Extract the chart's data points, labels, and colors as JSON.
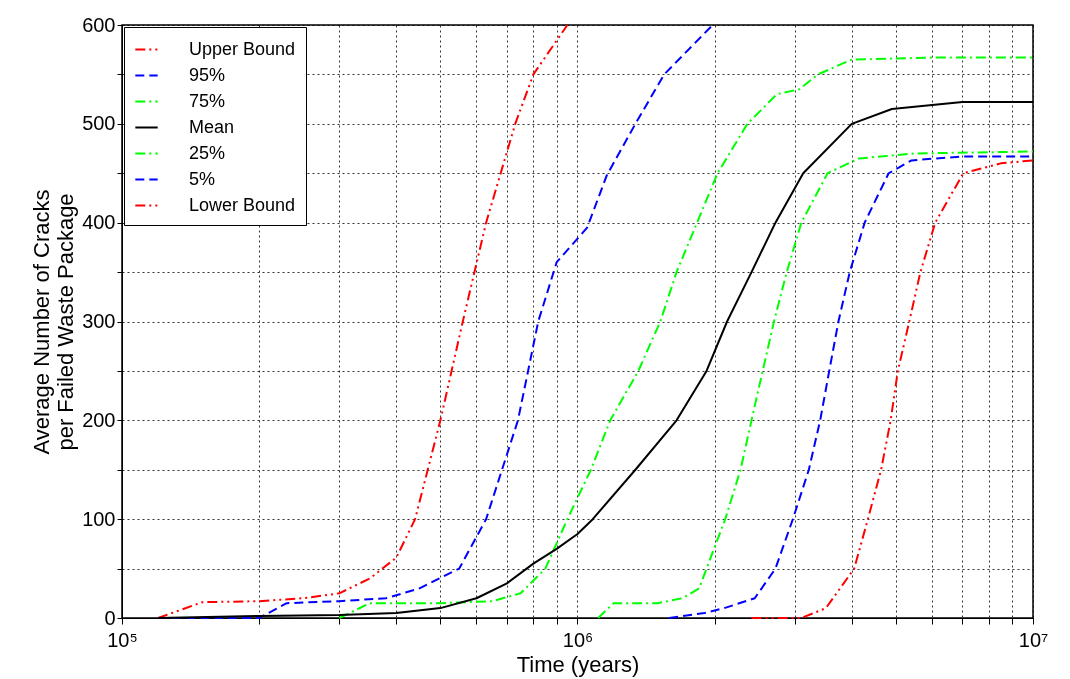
{
  "chart_data": {
    "type": "line",
    "xlabel": "Time (years)",
    "ylabel": "Average Number of Cracks\nper Failed Waste Package",
    "log": "x",
    "grid": true,
    "legend": "top left",
    "xlim": [
      100000,
      10000000
    ],
    "xticks": [
      {
        "value": 100000,
        "label": "10⁵"
      },
      {
        "value": 200000,
        "label": null
      },
      {
        "value": 300000,
        "label": null
      },
      {
        "value": 400000,
        "label": null
      },
      {
        "value": 500000,
        "label": null
      },
      {
        "value": 600000,
        "label": null
      },
      {
        "value": 700000,
        "label": null
      },
      {
        "value": 800000,
        "label": null
      },
      {
        "value": 900000,
        "label": null
      },
      {
        "value": 1000000,
        "label": "10⁶"
      },
      {
        "value": 2000000,
        "label": null
      },
      {
        "value": 3000000,
        "label": null
      },
      {
        "value": 4000000,
        "label": null
      },
      {
        "value": 5000000,
        "label": null
      },
      {
        "value": 6000000,
        "label": null
      },
      {
        "value": 7000000,
        "label": null
      },
      {
        "value": 8000000,
        "label": null
      },
      {
        "value": 9000000,
        "label": null
      },
      {
        "value": 10000000,
        "label": "10⁷"
      }
    ],
    "ylim": [
      0,
      600
    ],
    "yticks": [
      0,
      {
        "value": 50,
        "label": null
      },
      100,
      {
        "value": 150,
        "label": null
      },
      200,
      {
        "value": 250,
        "label": null
      },
      300,
      {
        "value": 350,
        "label": null
      },
      400,
      {
        "value": 450,
        "label": null
      },
      500,
      {
        "value": 550,
        "label": null
      },
      600
    ],
    "series": [
      {
        "name": "Upper Bound",
        "color": "#ff0000",
        "line_style": "dashdotdot",
        "x": [
          120000,
          150000,
          200000,
          250000,
          300000,
          350000,
          400000,
          440000,
          500000,
          560000,
          630000,
          730000,
          800000,
          950000
        ],
        "values": [
          0,
          16,
          17,
          20,
          25,
          40,
          61,
          100,
          200,
          300,
          400,
          500,
          550,
          600
        ]
      },
      {
        "name": "95%",
        "color": "#0000ff",
        "line_style": "dashed",
        "x": [
          120000,
          200000,
          230000,
          300000,
          380000,
          450000,
          550000,
          630000,
          740000,
          820000,
          900000,
          1050000,
          1160000,
          1340000,
          1550000,
          1980000
        ],
        "values": [
          0,
          0,
          15,
          17,
          20,
          30,
          50,
          100,
          200,
          300,
          360,
          395,
          448,
          500,
          550,
          600
        ]
      },
      {
        "name": "75%",
        "color": "#00ff00",
        "line_style": "dashdot",
        "x": [
          300000,
          350000,
          500000,
          650000,
          750000,
          850000,
          950000,
          1070000,
          1180000,
          1360000,
          1520000,
          1650000,
          1830000,
          2030000,
          2360000,
          2740000,
          3070000,
          3370000,
          4000000,
          6000000,
          10000000
        ],
        "values": [
          0,
          15,
          15,
          17,
          25,
          50,
          100,
          150,
          200,
          250,
          300,
          350,
          400,
          450,
          500,
          530,
          535,
          550,
          565,
          567,
          567
        ]
      },
      {
        "name": "Mean",
        "color": "#000000",
        "line_style": "solid",
        "x": [
          120000,
          200000,
          300000,
          400000,
          500000,
          600000,
          700000,
          800000,
          900000,
          1000000,
          1080000,
          1340000,
          1650000,
          1920000,
          2130000,
          2410000,
          2720000,
          3130000,
          4000000,
          4900000,
          7000000,
          10000000
        ],
        "values": [
          0,
          2,
          3,
          5,
          10,
          20,
          35,
          55,
          70,
          85,
          100,
          150,
          200,
          250,
          300,
          350,
          400,
          450,
          500,
          515,
          522,
          522
        ]
      },
      {
        "name": "25%",
        "color": "#00ff00",
        "line_style": "dashdot",
        "x": [
          1110000,
          1200000,
          1500000,
          1700000,
          1850000,
          1920000,
          2110000,
          2280000,
          2410000,
          2550000,
          2700000,
          2880000,
          3100000,
          3540000,
          4150000,
          5500000,
          10000000
        ],
        "values": [
          0,
          15,
          15,
          20,
          30,
          50,
          100,
          150,
          200,
          250,
          300,
          350,
          400,
          450,
          465,
          470,
          472
        ]
      },
      {
        "name": "5%",
        "color": "#0000ff",
        "line_style": "dashed",
        "x": [
          1590000,
          1900000,
          2100000,
          2450000,
          2720000,
          2970000,
          3220000,
          3410000,
          3570000,
          3740000,
          3960000,
          4270000,
          4820000,
          5410000,
          7000000,
          10000000
        ],
        "values": [
          0,
          5,
          10,
          20,
          50,
          100,
          150,
          200,
          250,
          300,
          350,
          400,
          450,
          463,
          467,
          467
        ]
      },
      {
        "name": "Lower Bound",
        "color": "#ff0000",
        "line_style": "dashdotdot",
        "x": [
          2410000,
          3100000,
          3510000,
          4050000,
          4340000,
          4640000,
          4870000,
          5050000,
          5350000,
          5660000,
          6100000,
          7030000,
          8500000,
          10000000
        ],
        "values": [
          0,
          0,
          10,
          50,
          100,
          150,
          200,
          250,
          300,
          350,
          400,
          450,
          460,
          463
        ]
      }
    ]
  }
}
